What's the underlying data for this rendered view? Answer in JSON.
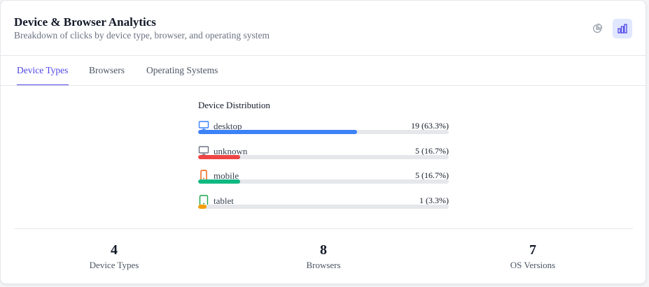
{
  "header": {
    "title": "Device & Browser Analytics",
    "subtitle": "Breakdown of clicks by device type, browser, and operating system"
  },
  "tabs": [
    {
      "label": "Device Types",
      "active": true
    },
    {
      "label": "Browsers",
      "active": false
    },
    {
      "label": "Operating Systems",
      "active": false
    }
  ],
  "distribution": {
    "title": "Device Distribution",
    "items": [
      {
        "name": "desktop",
        "label": "19 (63.3%)",
        "percent": 63.3,
        "color": "#3b82f6",
        "icon": "monitor",
        "icon_color": "#3b82f6"
      },
      {
        "name": "unknown",
        "label": "5 (16.7%)",
        "percent": 16.7,
        "color": "#ef4444",
        "icon": "monitor",
        "icon_color": "#6b7280"
      },
      {
        "name": "mobile",
        "label": "5 (16.7%)",
        "percent": 16.7,
        "color": "#10b981",
        "icon": "phone",
        "icon_color": "#ea580c"
      },
      {
        "name": "tablet",
        "label": "1 (3.3%)",
        "percent": 3.3,
        "color": "#f59e0b",
        "icon": "tablet",
        "icon_color": "#16a34a"
      }
    ]
  },
  "stats": [
    {
      "value": "4",
      "label": "Device Types"
    },
    {
      "value": "8",
      "label": "Browsers"
    },
    {
      "value": "7",
      "label": "OS Versions"
    }
  ]
}
